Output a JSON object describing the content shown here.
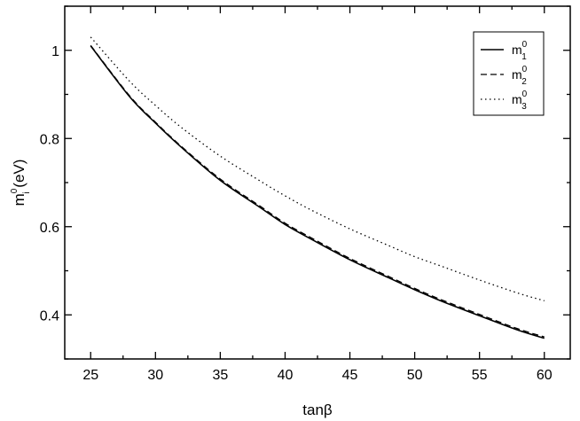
{
  "chart_data": {
    "type": "line",
    "xlabel": "tanβ",
    "ylabel": {
      "base": "m",
      "superscript": "0",
      "subscript": "i",
      "unit": " (eV)"
    },
    "xlim": [
      23,
      62
    ],
    "ylim": [
      0.3,
      1.1
    ],
    "xticks": [
      25,
      30,
      35,
      40,
      45,
      50,
      55,
      60
    ],
    "yticks": [
      0.4,
      0.6,
      0.8,
      1.0
    ],
    "xtick_labels": [
      "25",
      "30",
      "35",
      "40",
      "45",
      "50",
      "55",
      "60"
    ],
    "ytick_labels": [
      "0.4",
      "0.6",
      "0.8",
      "1"
    ],
    "grid": false,
    "legend_position": "top-right",
    "series": [
      {
        "name": "m01",
        "legend": {
          "base": "m",
          "superscript": "0",
          "subscript": "1"
        },
        "line_style": "solid",
        "x": [
          25,
          28,
          30,
          32,
          35,
          38,
          40,
          42,
          45,
          48,
          50,
          52,
          55,
          58,
          60
        ],
        "y": [
          1.01,
          0.895,
          0.835,
          0.78,
          0.705,
          0.645,
          0.605,
          0.572,
          0.525,
          0.484,
          0.457,
          0.432,
          0.398,
          0.365,
          0.347
        ]
      },
      {
        "name": "m02",
        "legend": {
          "base": "m",
          "superscript": "0",
          "subscript": "2"
        },
        "line_style": "dashed",
        "x": [
          25,
          28,
          30,
          32,
          35,
          38,
          40,
          42,
          45,
          48,
          50,
          52,
          55,
          58,
          60
        ],
        "y": [
          1.011,
          0.897,
          0.837,
          0.782,
          0.708,
          0.648,
          0.608,
          0.575,
          0.528,
          0.487,
          0.46,
          0.435,
          0.401,
          0.368,
          0.35
        ]
      },
      {
        "name": "m03",
        "legend": {
          "base": "m",
          "superscript": "0",
          "subscript": "3"
        },
        "line_style": "dotted",
        "x": [
          25,
          28,
          30,
          32,
          35,
          38,
          40,
          42,
          45,
          48,
          50,
          52,
          55,
          58,
          60
        ],
        "y": [
          1.03,
          0.93,
          0.875,
          0.825,
          0.76,
          0.705,
          0.67,
          0.638,
          0.595,
          0.557,
          0.532,
          0.511,
          0.479,
          0.449,
          0.432
        ]
      }
    ]
  }
}
